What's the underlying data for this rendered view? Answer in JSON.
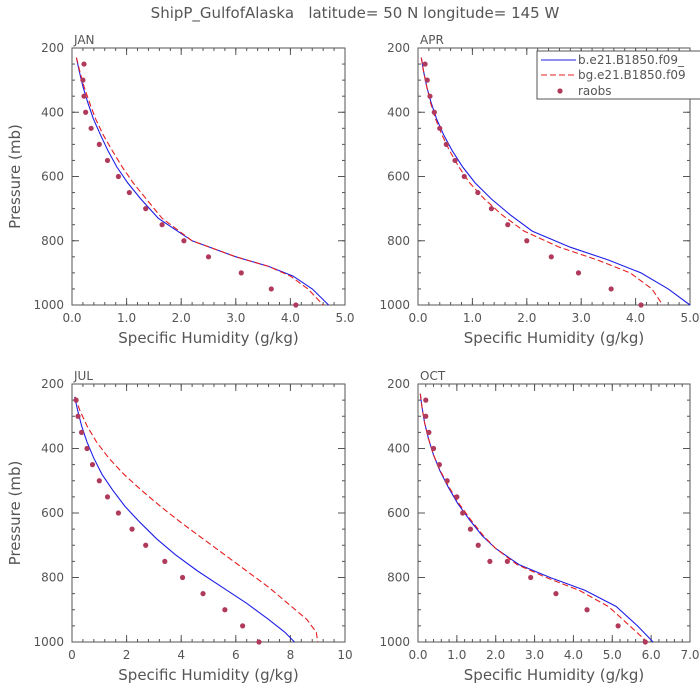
{
  "title": "ShipP_GulfofAlaska   latitude= 50 N longitude= 145 W",
  "colors": {
    "model1": "#1f1fe6",
    "model2": "#e61f1f",
    "obs": "#b03a5b",
    "axis": "#555555"
  },
  "legend": {
    "entries": [
      {
        "label": "b.e21.B1850.f09_",
        "style": "solid"
      },
      {
        "label": "bg.e21.B1850.f09",
        "style": "dashed"
      },
      {
        "label": "raobs",
        "style": "dots"
      }
    ]
  },
  "chart_data": [
    {
      "type": "line",
      "panel_title": "JAN",
      "xlabel": "Specific Humidity (g/kg)",
      "ylabel": "Pressure (mb)",
      "xlim": [
        0,
        5
      ],
      "ylim": [
        200,
        1000
      ],
      "y_inverted": true,
      "xticks": [
        0,
        1,
        2,
        3,
        4,
        5
      ],
      "xticklabels": [
        "0.0",
        "1.0",
        "2.0",
        "3.0",
        "4.0",
        "5.0"
      ],
      "yticks": [
        200,
        400,
        600,
        800,
        1000
      ],
      "series": [
        {
          "name": "b.e21.B1850.f09_",
          "x": [
            0.08,
            0.13,
            0.2,
            0.29,
            0.39,
            0.52,
            0.66,
            0.82,
            1.02,
            1.26,
            1.58,
            2.2,
            3.0,
            3.6,
            4.05,
            4.4,
            4.7
          ],
          "y": [
            230,
            270,
            320,
            370,
            420,
            470,
            520,
            570,
            620,
            670,
            730,
            800,
            850,
            880,
            910,
            950,
            1000
          ]
        },
        {
          "name": "bg.e21.B1850.f09",
          "x": [
            0.08,
            0.14,
            0.22,
            0.32,
            0.43,
            0.57,
            0.74,
            0.92,
            1.12,
            1.36,
            1.65,
            2.2,
            3.0,
            3.6,
            4.0,
            4.32,
            4.6
          ],
          "y": [
            230,
            270,
            320,
            370,
            420,
            470,
            520,
            570,
            620,
            670,
            730,
            800,
            850,
            880,
            910,
            950,
            1000
          ]
        },
        {
          "name": "raobs",
          "x": [
            0.22,
            0.2,
            0.22,
            0.25,
            0.35,
            0.5,
            0.65,
            0.85,
            1.05,
            1.35,
            1.65,
            2.05,
            2.5,
            3.1,
            3.65,
            4.1
          ],
          "y": [
            250,
            300,
            350,
            400,
            450,
            500,
            550,
            600,
            650,
            700,
            750,
            800,
            850,
            900,
            950,
            1000
          ]
        }
      ]
    },
    {
      "type": "line",
      "panel_title": "APR",
      "xlabel": "Specific Humidity (g/kg)",
      "ylabel": "",
      "xlim": [
        0,
        5
      ],
      "ylim": [
        200,
        1000
      ],
      "y_inverted": true,
      "xticks": [
        0,
        1,
        2,
        3,
        4,
        5
      ],
      "xticklabels": [
        "0.0",
        "1.0",
        "2.0",
        "3.0",
        "4.0",
        "5.0"
      ],
      "yticks": [
        200,
        400,
        600,
        800,
        1000
      ],
      "series": [
        {
          "name": "b.e21.B1850.f09_",
          "x": [
            0.06,
            0.1,
            0.16,
            0.24,
            0.34,
            0.47,
            0.63,
            0.82,
            1.05,
            1.35,
            1.7,
            2.1,
            2.8,
            3.5,
            4.1,
            4.6,
            5.0
          ],
          "y": [
            230,
            270,
            320,
            370,
            420,
            470,
            520,
            570,
            620,
            670,
            720,
            770,
            820,
            860,
            900,
            950,
            1000
          ]
        },
        {
          "name": "bg.e21.B1850.f09",
          "x": [
            0.06,
            0.1,
            0.16,
            0.23,
            0.32,
            0.44,
            0.58,
            0.75,
            0.95,
            1.22,
            1.55,
            1.95,
            2.6,
            3.3,
            3.9,
            4.3,
            4.5
          ],
          "y": [
            230,
            270,
            320,
            370,
            420,
            470,
            520,
            570,
            620,
            670,
            720,
            770,
            820,
            860,
            900,
            950,
            1000
          ]
        },
        {
          "name": "raobs",
          "x": [
            0.13,
            0.17,
            0.22,
            0.3,
            0.4,
            0.52,
            0.68,
            0.85,
            1.1,
            1.35,
            1.65,
            2.0,
            2.45,
            2.95,
            3.55,
            4.1
          ],
          "y": [
            250,
            300,
            350,
            400,
            450,
            500,
            550,
            600,
            650,
            700,
            750,
            800,
            850,
            900,
            950,
            1000
          ]
        }
      ]
    },
    {
      "type": "line",
      "panel_title": "JUL",
      "xlabel": "Specific Humidity (g/kg)",
      "ylabel": "Pressure (mb)",
      "xlim": [
        0,
        10
      ],
      "ylim": [
        200,
        1000
      ],
      "y_inverted": true,
      "xticks": [
        0,
        2,
        4,
        6,
        8,
        10
      ],
      "xticklabels": [
        "0",
        "2",
        "4",
        "6",
        "8",
        "10"
      ],
      "yticks": [
        200,
        400,
        600,
        800,
        1000
      ],
      "series": [
        {
          "name": "b.e21.B1850.f09_",
          "x": [
            0.1,
            0.2,
            0.35,
            0.55,
            0.8,
            1.1,
            1.5,
            1.95,
            2.5,
            3.1,
            3.8,
            4.6,
            5.5,
            6.4,
            7.2,
            7.8,
            8.15
          ],
          "y": [
            240,
            280,
            330,
            380,
            430,
            480,
            530,
            580,
            630,
            680,
            730,
            780,
            830,
            880,
            930,
            970,
            1000
          ]
        },
        {
          "name": "bg.e21.B1850.f09",
          "x": [
            0.12,
            0.28,
            0.55,
            0.9,
            1.35,
            1.9,
            2.55,
            3.25,
            4.0,
            4.8,
            5.6,
            6.4,
            7.2,
            7.9,
            8.6,
            8.95,
            9.0
          ],
          "y": [
            240,
            280,
            330,
            380,
            430,
            480,
            530,
            580,
            630,
            680,
            730,
            780,
            830,
            880,
            930,
            970,
            1000
          ]
        },
        {
          "name": "raobs",
          "x": [
            0.15,
            0.22,
            0.35,
            0.55,
            0.75,
            1.0,
            1.3,
            1.7,
            2.2,
            2.7,
            3.4,
            4.05,
            4.8,
            5.6,
            6.25,
            6.85
          ],
          "y": [
            250,
            300,
            350,
            400,
            450,
            500,
            550,
            600,
            650,
            700,
            750,
            800,
            850,
            900,
            950,
            1000
          ]
        }
      ]
    },
    {
      "type": "line",
      "panel_title": "OCT",
      "xlabel": "Specific Humidity (g/kg)",
      "ylabel": "",
      "xlim": [
        0,
        7
      ],
      "ylim": [
        200,
        1000
      ],
      "y_inverted": true,
      "xticks": [
        0,
        1,
        2,
        3,
        4,
        5,
        6,
        7
      ],
      "xticklabels": [
        "0.0",
        "1.0",
        "2.0",
        "3.0",
        "4.0",
        "5.0",
        "6.0",
        "7.0"
      ],
      "yticks": [
        200,
        400,
        600,
        800,
        1000
      ],
      "series": [
        {
          "name": "b.e21.B1850.f09_",
          "x": [
            0.06,
            0.1,
            0.17,
            0.27,
            0.4,
            0.57,
            0.78,
            1.02,
            1.32,
            1.65,
            2.0,
            2.6,
            3.4,
            4.3,
            5.1,
            5.65,
            6.05
          ],
          "y": [
            230,
            270,
            320,
            370,
            420,
            470,
            520,
            570,
            620,
            670,
            710,
            760,
            800,
            840,
            890,
            950,
            1000
          ]
        },
        {
          "name": "bg.e21.B1850.f09",
          "x": [
            0.06,
            0.1,
            0.17,
            0.27,
            0.4,
            0.58,
            0.8,
            1.05,
            1.35,
            1.68,
            2.0,
            2.55,
            3.3,
            4.15,
            4.9,
            5.45,
            5.9
          ],
          "y": [
            230,
            270,
            320,
            370,
            420,
            470,
            520,
            570,
            620,
            670,
            710,
            760,
            800,
            840,
            890,
            950,
            1000
          ]
        },
        {
          "name": "raobs",
          "x": [
            0.2,
            0.2,
            0.28,
            0.4,
            0.55,
            0.75,
            1.0,
            1.15,
            1.35,
            1.55,
            1.85,
            2.3,
            2.9,
            3.55,
            4.35,
            5.15,
            5.85
          ],
          "y": [
            250,
            300,
            350,
            400,
            450,
            500,
            550,
            600,
            650,
            700,
            750,
            750,
            800,
            850,
            900,
            950,
            1000
          ]
        }
      ]
    }
  ]
}
